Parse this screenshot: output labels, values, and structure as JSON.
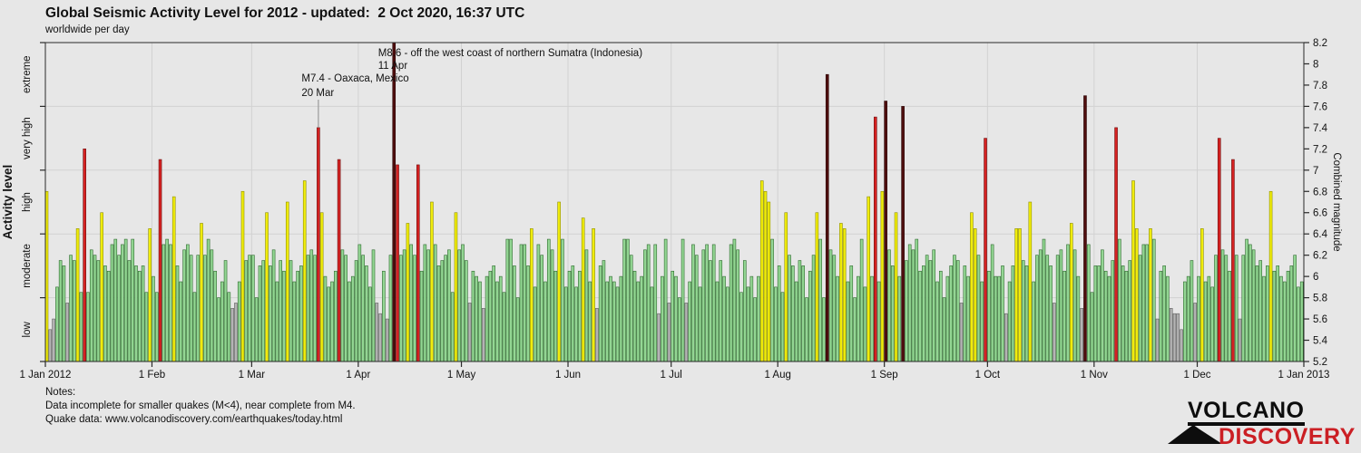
{
  "title": "Global Seismic Activity Level for 2012 - updated:  2 Oct 2020, 16:37 UTC",
  "subtitle": "worldwide per day",
  "notes": {
    "heading": "Notes:",
    "line1": "Data incomplete for smaller quakes (M<4), near complete from M4.",
    "line2": "Quake data: www.volcanodiscovery.com/earthquakes/today.html"
  },
  "logo": {
    "line1": "VOLCANO",
    "line2": "DISCOVERY"
  },
  "chart_data": {
    "type": "bar",
    "title": "Global Seismic Activity Level for 2012",
    "subtitle": "worldwide per day",
    "ylabel_left": "Activity level",
    "ylabel_right": "Combined magnitude",
    "y_min": 5.2,
    "y_max": 8.2,
    "y_tick_step": 0.2,
    "grid_values": [
      5.8,
      6.4,
      7.0,
      7.6
    ],
    "activity_bands": [
      {
        "label": "low",
        "max": 5.8,
        "fill": "#b4b4b4",
        "stroke": "#5f5f5f"
      },
      {
        "label": "moderate",
        "max": 6.4,
        "fill": "#93d693",
        "stroke": "#2f6b2f"
      },
      {
        "label": "high",
        "max": 7.0,
        "fill": "#f0ec0c",
        "stroke": "#8f8f00"
      },
      {
        "label": "very high",
        "max": 7.6,
        "fill": "#d52222",
        "stroke": "#6e0f0f"
      },
      {
        "label": "extreme",
        "max": 99,
        "fill": "#4e0d0d",
        "stroke": "#2a0505"
      }
    ],
    "x_ticks": [
      {
        "day": 1,
        "label": "1 Jan 2012"
      },
      {
        "day": 32,
        "label": "1 Feb"
      },
      {
        "day": 61,
        "label": "1 Mar"
      },
      {
        "day": 92,
        "label": "1 Apr"
      },
      {
        "day": 122,
        "label": "1 May"
      },
      {
        "day": 153,
        "label": "1 Jun"
      },
      {
        "day": 183,
        "label": "1 Jul"
      },
      {
        "day": 214,
        "label": "1 Aug"
      },
      {
        "day": 245,
        "label": "1 Sep"
      },
      {
        "day": 275,
        "label": "1 Oct"
      },
      {
        "day": 306,
        "label": "1 Nov"
      },
      {
        "day": 336,
        "label": "1 Dec"
      },
      {
        "day": 367,
        "label": "1 Jan 2013"
      }
    ],
    "annotations": [
      {
        "label": "M8.6 - off the west coast of northern Sumatra (Indonesia)",
        "date_label": "11 Apr",
        "day": 102
      },
      {
        "label": "M7.4 - Oaxaca, Mexico",
        "date_label": "20 Mar",
        "day": 80
      }
    ],
    "days_in_year": 366,
    "start_label": "1 Jan 2012",
    "values": [
      6.8,
      5.5,
      5.6,
      5.9,
      6.15,
      6.1,
      5.75,
      6.2,
      6.15,
      6.45,
      5.85,
      7.2,
      5.85,
      6.25,
      6.2,
      6.15,
      6.6,
      6.1,
      6.05,
      6.3,
      6.35,
      6.2,
      6.3,
      6.35,
      6.15,
      6.35,
      6.1,
      6.05,
      6.1,
      5.85,
      6.45,
      6.0,
      5.85,
      7.1,
      6.3,
      6.35,
      6.3,
      6.75,
      6.1,
      5.95,
      6.25,
      6.3,
      6.2,
      5.85,
      6.2,
      6.5,
      6.2,
      6.35,
      6.25,
      6.05,
      5.8,
      5.95,
      6.15,
      5.85,
      5.7,
      5.75,
      5.95,
      6.8,
      6.15,
      6.2,
      6.2,
      5.8,
      6.1,
      6.15,
      6.6,
      6.1,
      6.25,
      5.95,
      6.15,
      6.05,
      6.7,
      6.15,
      5.95,
      6.05,
      6.1,
      6.9,
      6.2,
      6.25,
      6.2,
      7.4,
      6.6,
      6.0,
      5.9,
      5.95,
      6.05,
      7.1,
      6.25,
      6.2,
      5.95,
      6.0,
      6.15,
      6.3,
      6.2,
      6.1,
      5.9,
      6.25,
      5.75,
      5.65,
      6.05,
      5.6,
      6.2,
      8.6,
      7.05,
      6.2,
      6.25,
      6.5,
      6.3,
      6.2,
      7.05,
      6.05,
      6.3,
      6.25,
      6.7,
      6.3,
      6.1,
      6.15,
      6.2,
      6.25,
      5.85,
      6.6,
      6.25,
      6.3,
      6.15,
      5.75,
      6.05,
      6.0,
      5.95,
      5.7,
      6.0,
      6.05,
      6.1,
      5.95,
      6.0,
      5.85,
      6.35,
      6.35,
      6.1,
      5.8,
      6.3,
      6.3,
      6.1,
      6.45,
      5.9,
      6.3,
      6.2,
      5.95,
      6.35,
      6.25,
      6.05,
      6.7,
      6.35,
      5.9,
      6.05,
      6.1,
      5.9,
      6.05,
      6.55,
      6.25,
      5.95,
      6.45,
      5.7,
      6.1,
      6.15,
      5.95,
      6.0,
      5.95,
      5.9,
      6.0,
      6.35,
      6.35,
      6.2,
      6.05,
      5.95,
      6.0,
      6.25,
      6.3,
      5.9,
      6.3,
      5.65,
      6.0,
      6.35,
      5.75,
      6.05,
      6.0,
      5.8,
      6.35,
      5.75,
      5.95,
      6.3,
      6.2,
      5.9,
      6.25,
      6.3,
      6.15,
      6.3,
      5.95,
      6.15,
      6.0,
      5.9,
      6.3,
      6.35,
      6.25,
      5.85,
      6.15,
      5.9,
      6.0,
      5.8,
      6.0,
      6.9,
      6.8,
      6.7,
      6.35,
      5.9,
      6.1,
      5.85,
      6.6,
      6.2,
      6.1,
      5.95,
      6.15,
      6.1,
      5.8,
      6.05,
      6.2,
      6.6,
      6.35,
      5.8,
      7.9,
      6.25,
      6.2,
      6.0,
      6.5,
      6.45,
      5.95,
      6.1,
      5.8,
      6.0,
      6.35,
      5.9,
      6.75,
      6.0,
      7.5,
      5.95,
      6.8,
      7.65,
      6.25,
      6.1,
      6.6,
      6.0,
      7.6,
      6.15,
      6.3,
      6.25,
      6.35,
      6.05,
      6.1,
      6.2,
      6.15,
      6.25,
      5.95,
      6.05,
      5.8,
      6.0,
      6.1,
      6.2,
      6.15,
      5.75,
      6.1,
      6.0,
      6.6,
      6.45,
      6.2,
      5.95,
      7.3,
      6.05,
      6.3,
      6.0,
      6.0,
      6.1,
      5.65,
      5.95,
      6.1,
      6.45,
      6.45,
      6.15,
      6.1,
      6.7,
      5.95,
      6.2,
      6.25,
      6.35,
      6.2,
      6.1,
      5.75,
      6.2,
      6.25,
      6.05,
      6.3,
      6.5,
      6.25,
      6.0,
      5.7,
      7.7,
      6.3,
      5.85,
      6.1,
      6.1,
      6.25,
      6.05,
      6.0,
      6.15,
      7.4,
      6.35,
      6.1,
      6.05,
      6.15,
      6.9,
      6.45,
      6.2,
      6.3,
      6.3,
      6.45,
      6.35,
      5.6,
      6.05,
      6.1,
      6.0,
      5.7,
      5.65,
      5.65,
      5.5,
      5.95,
      6.0,
      6.15,
      5.75,
      6.0,
      6.45,
      5.95,
      6.0,
      5.9,
      6.2,
      7.3,
      6.25,
      6.2,
      6.05,
      7.1,
      6.2,
      5.6,
      6.2,
      6.35,
      6.3,
      6.25,
      6.1,
      6.15,
      6.0,
      6.1,
      6.8,
      6.05,
      6.1,
      6.0,
      5.95,
      6.05,
      6.1,
      6.2,
      5.9,
      5.95
    ]
  },
  "colors": {
    "background": "#e7e7e7",
    "gridline": "#d2d2d2",
    "axis": "#2a2a2a",
    "annotation_bar_extreme": "#4e0d0d",
    "logo_red": "#cb1f24"
  }
}
